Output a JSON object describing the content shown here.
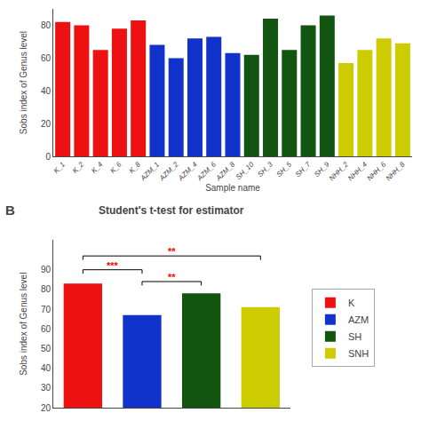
{
  "chart_data": [
    {
      "type": "bar",
      "categories": [
        "K_1",
        "K_2",
        "K_4",
        "K_6",
        "K_8",
        "AZM_1",
        "AZM_2",
        "AZM_4",
        "AZM_6",
        "AZM_8",
        "SH_10",
        "SH_3",
        "SH_5",
        "SH_7",
        "SH_9",
        "NHH_2",
        "NHH_4",
        "NHH_6",
        "NHH_8"
      ],
      "values": [
        82,
        80,
        65,
        78,
        83,
        68,
        60,
        72,
        73,
        63,
        62,
        84,
        65,
        80,
        86,
        57,
        65,
        72,
        69
      ],
      "colors": [
        "#ee1111",
        "#ee1111",
        "#ee1111",
        "#ee1111",
        "#ee1111",
        "#1133cc",
        "#1133cc",
        "#1133cc",
        "#1133cc",
        "#1133cc",
        "#115511",
        "#115511",
        "#115511",
        "#115511",
        "#115511",
        "#cccc00",
        "#cccc00",
        "#cccc00",
        "#cccc00"
      ],
      "xlabel": "Sample name",
      "ylabel": "Sobs index of Genus level",
      "ylim": [
        0,
        90
      ],
      "yticks": [
        0,
        20,
        40,
        60,
        80
      ],
      "grid": false
    },
    {
      "type": "bar",
      "title": "Student's t-test for estimator",
      "categories": [
        "K",
        "AZM",
        "SH",
        "SNH"
      ],
      "values": [
        83,
        67,
        78,
        71
      ],
      "colors": [
        "#ee1111",
        "#1133cc",
        "#115511",
        "#cccc00"
      ],
      "ylabel": "Sobs index of Genus level",
      "ylim": [
        20,
        105
      ],
      "yticks": [
        20,
        30,
        40,
        50,
        60,
        70,
        80,
        90
      ],
      "grid": false,
      "tick_labels": "y",
      "legend": "right",
      "annotations": [
        {
          "text": "***",
          "x": [
            "K",
            "AZM"
          ],
          "y": 90,
          "color": "#ff0000"
        },
        {
          "text": "**",
          "x": [
            "AZM",
            "SH"
          ],
          "y": 84,
          "color": "#ff0000"
        },
        {
          "text": "**",
          "x": [
            "K",
            "SNH"
          ],
          "y": 97,
          "color": "#ff0000"
        },
        {
          "text": "B"
        }
      ]
    }
  ]
}
